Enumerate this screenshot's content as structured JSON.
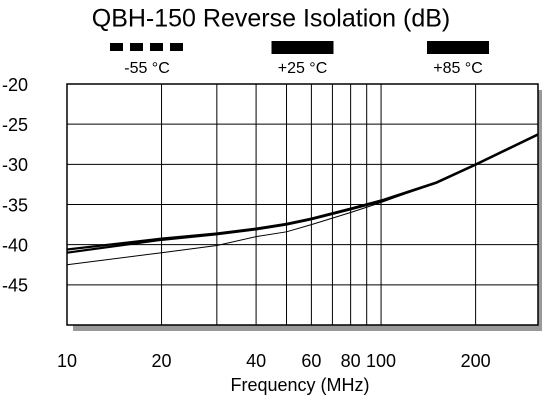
{
  "chart_data": {
    "type": "line",
    "title": "QBH-150 Reverse Isolation (dB)",
    "x_label": "Frequency (MHz)",
    "xlog": true,
    "x": [
      10,
      20,
      30,
      40,
      50,
      60,
      80,
      100,
      150,
      200,
      316
    ],
    "series": [
      {
        "name": "-55 °C",
        "color": "#000000",
        "style": "dashed",
        "values": [
          -42.5,
          -41,
          -40.1,
          -39,
          -38.4,
          -37.5,
          -36,
          -34.75,
          -32.25,
          -30,
          -26.25
        ]
      },
      {
        "name": "+25 °C",
        "color": "#000000",
        "style": "solid",
        "values": [
          -40.6,
          -39.25,
          -38.6,
          -38,
          -37.4,
          -36.75,
          -35.5,
          -34.5,
          -32.25,
          -30,
          -26.25
        ]
      },
      {
        "name": "+85 °C",
        "color": "#000000",
        "style": "solid",
        "values": [
          -41,
          -39.4,
          -38.7,
          -38.1,
          -37.5,
          -36.85,
          -35.6,
          -34.6,
          -32.3,
          -30.05,
          -26.3
        ]
      }
    ],
    "xlim": [
      10,
      316
    ],
    "xticks": [
      10,
      20,
      40,
      60,
      80,
      100,
      200
    ],
    "xgrid": [
      20,
      30,
      40,
      50,
      60,
      70,
      80,
      90,
      100,
      200
    ],
    "ylim": [
      -50,
      -20
    ],
    "yticks": [
      -20,
      -25,
      -30,
      -35,
      -40,
      -45
    ],
    "grid": true,
    "legend": "top"
  }
}
